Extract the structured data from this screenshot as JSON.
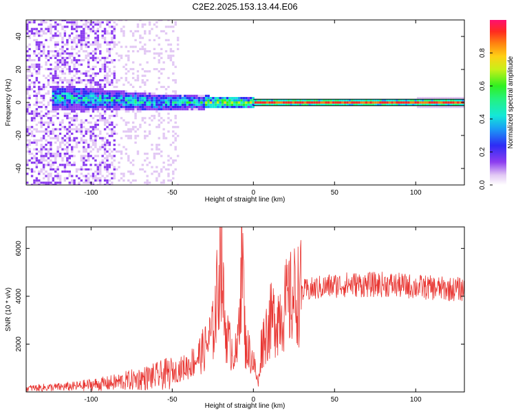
{
  "title": "C2E2.2025.153.13.44.E06",
  "chart_data": [
    {
      "type": "heatmap",
      "xlabel": "Height of straight line (km)",
      "ylabel": "Frequency (Hz)",
      "xlim": [
        -140,
        130
      ],
      "ylim": [
        -50,
        50
      ],
      "xticks": [
        -100,
        -50,
        0,
        50,
        100
      ],
      "yticks": [
        -40,
        -20,
        0,
        20,
        40
      ],
      "colorbar": {
        "label": "Normalized spectral amplitude",
        "range": [
          0,
          1
        ],
        "ticks": [
          0.0,
          0.2,
          0.4,
          0.6,
          0.8
        ]
      },
      "features": {
        "coherent_line_frequency_hz": 0,
        "line_start_height_km": 0,
        "noise_region_end_km": -47,
        "reference_line_y_hz": [
          -2,
          2
        ]
      }
    },
    {
      "type": "line",
      "xlabel": "Height of straight line (km)",
      "ylabel": "SNR (10 * v/v)",
      "xlim": [
        -140,
        130
      ],
      "ylim": [
        0,
        6900
      ],
      "xticks": [
        -100,
        -50,
        0,
        50,
        100
      ],
      "yticks": [
        2000,
        4000,
        6000
      ],
      "line_color": "#e8332f",
      "series": [
        {
          "x": [
            -140,
            -130,
            -120,
            -110,
            -100,
            -90,
            -80,
            -70,
            -60,
            -50,
            -40,
            -35,
            -30,
            -25,
            -22,
            -20,
            -18,
            -15,
            -10,
            -7,
            -5,
            0,
            3,
            5,
            10,
            15,
            20,
            25,
            30,
            40,
            50,
            60,
            70,
            80,
            90,
            100,
            110,
            120,
            130
          ],
          "y": [
            150,
            180,
            200,
            230,
            300,
            350,
            450,
            550,
            650,
            800,
            1100,
            1400,
            1800,
            2500,
            4200,
            6800,
            3000,
            2000,
            1500,
            6300,
            2000,
            1300,
            300,
            2000,
            2900,
            3200,
            3600,
            4000,
            4200,
            4350,
            4450,
            4500,
            4480,
            4500,
            4450,
            4400,
            4350,
            4300,
            4300
          ]
        }
      ]
    }
  ]
}
